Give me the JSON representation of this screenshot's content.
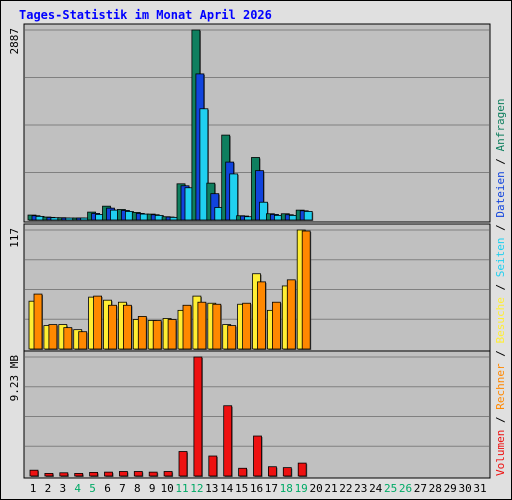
{
  "chart_data": {
    "type": "bar",
    "title": "Tages-Statistik im Monat April 2026",
    "days": [
      "1",
      "2",
      "3",
      "4",
      "5",
      "6",
      "7",
      "8",
      "9",
      "10",
      "11",
      "12",
      "13",
      "14",
      "15",
      "16",
      "17",
      "18",
      "19",
      "20",
      "21",
      "22",
      "23",
      "24",
      "25",
      "26",
      "27",
      "28",
      "29",
      "30",
      "31"
    ],
    "weekend_days": [
      "4",
      "5",
      "11",
      "12",
      "18",
      "19",
      "25",
      "26"
    ],
    "panels": [
      {
        "max_label": "2887",
        "ymax": 2887,
        "series": [
          {
            "name": "Anfragen",
            "color": "#0f7f5f",
            "values": [
              75,
              45,
              35,
              30,
              120,
              210,
              160,
              115,
              90,
              50,
              550,
              2887,
              560,
              1290,
              65,
              950,
              95,
              95,
              150,
              0,
              0,
              0,
              0,
              0,
              0,
              0,
              0,
              0,
              0,
              0,
              0
            ]
          },
          {
            "name": "Dateien",
            "color": "#1144dd",
            "values": [
              65,
              40,
              30,
              25,
              100,
              180,
              145,
              100,
              80,
              45,
              520,
              2220,
              400,
              880,
              60,
              750,
              85,
              80,
              140,
              0,
              0,
              0,
              0,
              0,
              0,
              0,
              0,
              0,
              0,
              0,
              0
            ]
          },
          {
            "name": "Seiten",
            "color": "#20d0f0",
            "values": [
              55,
              35,
              25,
              20,
              85,
              150,
              130,
              90,
              70,
              40,
              490,
              1690,
              190,
              700,
              50,
              270,
              70,
              70,
              130,
              0,
              0,
              0,
              0,
              0,
              0,
              0,
              0,
              0,
              0,
              0,
              0
            ]
          }
        ]
      },
      {
        "max_label": "117",
        "ymax": 117,
        "series": [
          {
            "name": "Besuche",
            "color": "#ffee33",
            "values": [
              47,
              23,
              24,
              19,
              51,
              48,
              46,
              29,
              28,
              30,
              38,
              52,
              45,
              24,
              44,
              74,
              38,
              62,
              117,
              0,
              0,
              0,
              0,
              0,
              0,
              0,
              0,
              0,
              0,
              0,
              0
            ]
          },
          {
            "name": "Rechner",
            "color": "#ff8800",
            "values": [
              54,
              24,
              21,
              17,
              52,
              43,
              43,
              32,
              28,
              29,
              43,
              46,
              44,
              23,
              45,
              66,
              46,
              68,
              116,
              0,
              0,
              0,
              0,
              0,
              0,
              0,
              0,
              0,
              0,
              0,
              0
            ]
          }
        ]
      },
      {
        "max_label": "9.23 MB",
        "ymax": 9.23,
        "series": [
          {
            "name": "Volumen",
            "color": "#ee1111",
            "values": [
              0.45,
              0.2,
              0.25,
              0.2,
              0.28,
              0.3,
              0.35,
              0.35,
              0.3,
              0.35,
              1.9,
              9.23,
              1.55,
              5.45,
              0.6,
              3.1,
              0.72,
              0.65,
              1.0,
              0,
              0,
              0,
              0,
              0,
              0,
              0,
              0,
              0,
              0,
              0,
              0
            ]
          }
        ]
      }
    ],
    "legend": {
      "items": [
        "Volumen",
        "Rechner",
        "Besuche",
        "Seiten",
        "Dateien",
        "Anfragen"
      ],
      "separator": " / ",
      "placement": "right, vertical"
    },
    "grid": true
  },
  "colors": {
    "background": "#e0e0e0",
    "plot": "#c0c0c0",
    "title": "#0000ff",
    "day_label": "#000000",
    "weekend_label": "#00aa66"
  }
}
